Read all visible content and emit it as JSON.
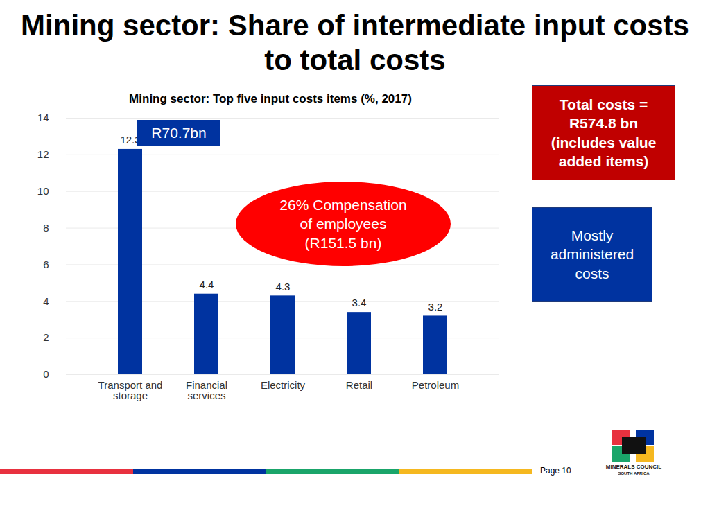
{
  "chart_data": {
    "type": "bar",
    "title": "Mining sector: Share of intermediate input costs to total costs",
    "subtitle": "Mining sector: Top five input costs items (%, 2017)",
    "categories": [
      "Transport and storage",
      "Financial services",
      "Electricity",
      "Retail",
      "Petroleum"
    ],
    "values": [
      12.3,
      4.4,
      4.3,
      3.4,
      3.2
    ],
    "color": "#0033a0",
    "ylim": [
      0,
      14
    ],
    "yticks": [
      0,
      2,
      4,
      6,
      8,
      10,
      12,
      14
    ],
    "grid": true,
    "data_labels": true,
    "annotations": [
      [
        "R70.7bn"
      ],
      [
        "26% Compensation",
        "of employees",
        "(R151.5 bn)"
      ],
      [
        "Total costs =",
        "R574.8 bn",
        "(includes value",
        "added items)"
      ],
      [
        "Mostly",
        "administered",
        "costs"
      ]
    ],
    "footer": {
      "page": "Page 10",
      "logo": [
        "MINERALS COUNCIL",
        "SOUTH AFRICA"
      ]
    }
  }
}
